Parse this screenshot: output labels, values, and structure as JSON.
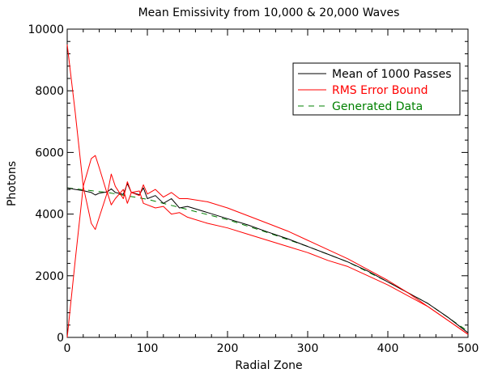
{
  "chart_data": {
    "type": "line",
    "title": "Mean Emissivity from 10,000 & 20,000 Waves",
    "xlabel": "Radial Zone",
    "ylabel": "Photons",
    "xlim": [
      0,
      500
    ],
    "ylim": [
      0,
      10000
    ],
    "x_ticks": [
      0,
      100,
      200,
      300,
      400,
      500
    ],
    "y_ticks": [
      0,
      2000,
      4000,
      6000,
      8000,
      10000
    ],
    "grid": false,
    "legend_position": "top-right",
    "legend": [
      {
        "label": "Mean of 1000 Passes",
        "color": "#000000",
        "style": "solid"
      },
      {
        "label": "RMS Error Bound",
        "color": "#ff0000",
        "style": "solid"
      },
      {
        "label": "Generated Data",
        "color": "#008000",
        "style": "dashed"
      }
    ],
    "series": [
      {
        "name": "Generated Data",
        "color": "#008000",
        "style": "dashed",
        "x": [
          0,
          50,
          100,
          150,
          200,
          250,
          300,
          350,
          400,
          450,
          500
        ],
        "y": [
          4850,
          4700,
          4480,
          4150,
          3820,
          3400,
          2950,
          2450,
          1800,
          1100,
          200
        ]
      },
      {
        "name": "Mean of 1000 Passes",
        "color": "#000000",
        "style": "solid",
        "x": [
          0,
          10,
          20,
          30,
          35,
          40,
          50,
          55,
          60,
          70,
          75,
          80,
          90,
          95,
          100,
          110,
          120,
          130,
          140,
          150,
          175,
          200,
          225,
          250,
          275,
          300,
          325,
          350,
          375,
          400,
          425,
          450,
          475,
          500
        ],
        "y": [
          4850,
          4800,
          4760,
          4700,
          4620,
          4680,
          4720,
          4820,
          4700,
          4640,
          4990,
          4700,
          4630,
          4850,
          4500,
          4600,
          4350,
          4500,
          4200,
          4250,
          4050,
          3850,
          3650,
          3420,
          3200,
          2950,
          2700,
          2450,
          2150,
          1800,
          1450,
          1100,
          650,
          150
        ]
      },
      {
        "name": "RMS Error Bound (upper)",
        "color": "#ff0000",
        "style": "solid",
        "x": [
          0,
          10,
          20,
          30,
          35,
          40,
          50,
          55,
          60,
          70,
          75,
          80,
          90,
          95,
          100,
          110,
          120,
          130,
          140,
          150,
          175,
          200,
          225,
          250,
          275,
          300,
          325,
          350,
          375,
          400,
          425,
          450,
          475,
          500
        ],
        "y": [
          0,
          2500,
          4900,
          5800,
          5900,
          5500,
          4650,
          5300,
          4900,
          4500,
          5050,
          4700,
          4600,
          4950,
          4650,
          4800,
          4550,
          4700,
          4500,
          4500,
          4400,
          4200,
          3950,
          3700,
          3450,
          3150,
          2850,
          2550,
          2200,
          1850,
          1450,
          1000,
          550,
          100
        ]
      },
      {
        "name": "RMS Error Bound (lower)",
        "color": "#ff0000",
        "style": "solid",
        "x": [
          0,
          10,
          20,
          30,
          35,
          40,
          50,
          55,
          60,
          70,
          75,
          80,
          90,
          95,
          100,
          110,
          120,
          130,
          140,
          150,
          175,
          200,
          225,
          250,
          275,
          300,
          325,
          350,
          375,
          400,
          425,
          450,
          475,
          500
        ],
        "y": [
          9500,
          7300,
          4900,
          3700,
          3500,
          3900,
          4700,
          4300,
          4500,
          4800,
          4350,
          4700,
          4750,
          4350,
          4300,
          4200,
          4250,
          4000,
          4050,
          3900,
          3700,
          3550,
          3350,
          3150,
          2950,
          2750,
          2500,
          2300,
          2000,
          1700,
          1350,
          1000,
          550,
          100
        ]
      }
    ]
  }
}
